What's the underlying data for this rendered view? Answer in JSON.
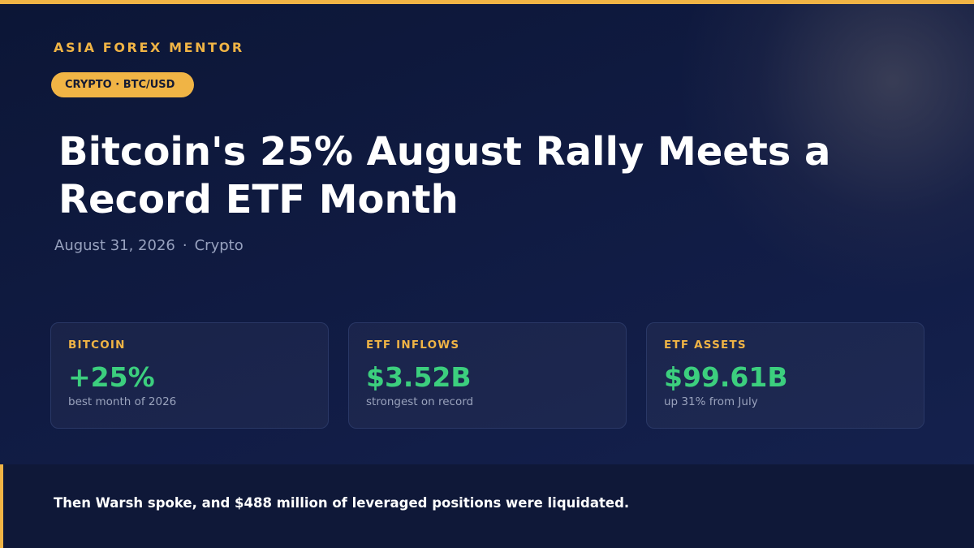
{
  "brand": "ASIA FOREX MENTOR",
  "tag": "CRYPTO · BTC/USD",
  "headline": "Bitcoin's 25% August Rally Meets a Record ETF Month",
  "meta": {
    "date": "August 31, 2026",
    "separator": "·",
    "category": "Crypto"
  },
  "stats": [
    {
      "label": "BITCOIN",
      "value": "+25%",
      "sub": "best month of 2026"
    },
    {
      "label": "ETF INFLOWS",
      "value": "$3.52B",
      "sub": "strongest on record"
    },
    {
      "label": "ETF ASSETS",
      "value": "$99.61B",
      "sub": "up 31% from July"
    }
  ],
  "footer": {
    "text": "Then Warsh spoke, and $488 million of leveraged positions were liquidated."
  },
  "colors": {
    "background": "#111c45",
    "accent": "#f0b445",
    "positive": "#3ccf7e",
    "text": "#ffffff",
    "muted": "#98a2bf"
  }
}
